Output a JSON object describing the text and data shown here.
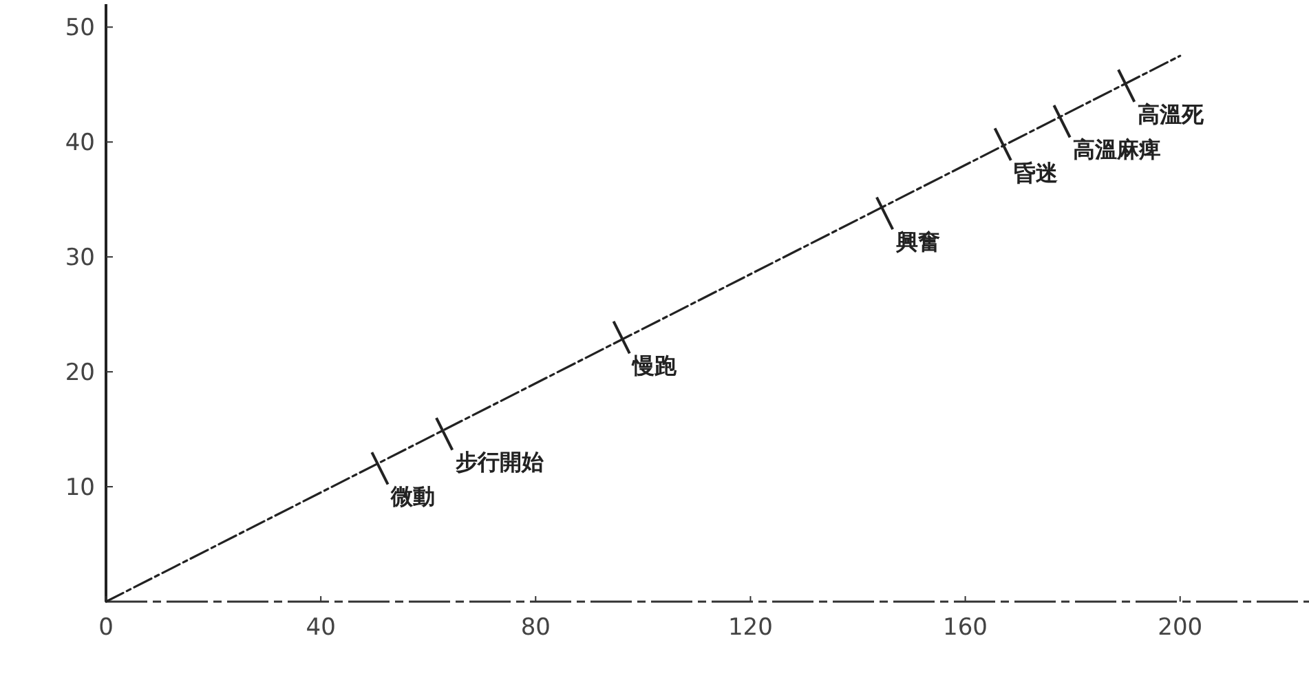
{
  "chart_data": {
    "type": "line",
    "xlim": [
      0,
      224
    ],
    "ylim": [
      0,
      52
    ],
    "xticks": [
      0,
      40,
      80,
      120,
      160,
      200
    ],
    "yticks": [
      10,
      20,
      30,
      40,
      50
    ],
    "grid": false,
    "series": [
      {
        "type": "line",
        "x": [
          0,
          200
        ],
        "values": [
          0,
          47.5
        ],
        "color": "#222222",
        "line_style": "dashed",
        "marker": "none"
      },
      {
        "type": "scatter",
        "x": [
          51,
          63,
          96,
          145,
          167,
          178,
          190
        ],
        "values": [
          11.6,
          14.6,
          23,
          33.8,
          39.8,
          41.8,
          44.9
        ],
        "color": "#222222",
        "marker": "cross"
      }
    ],
    "annotations": [
      {
        "text": "微動",
        "x": 51,
        "y": 11.6
      },
      {
        "text": "步行開始",
        "x": 63,
        "y": 14.6
      },
      {
        "text": "慢跑",
        "x": 96,
        "y": 23
      },
      {
        "text": "興奮",
        "x": 145,
        "y": 33.8
      },
      {
        "text": "昏迷",
        "x": 167,
        "y": 39.8
      },
      {
        "text": "高溫麻痺",
        "x": 178,
        "y": 41.8
      },
      {
        "text": "高溫死",
        "x": 190,
        "y": 44.9
      }
    ]
  }
}
